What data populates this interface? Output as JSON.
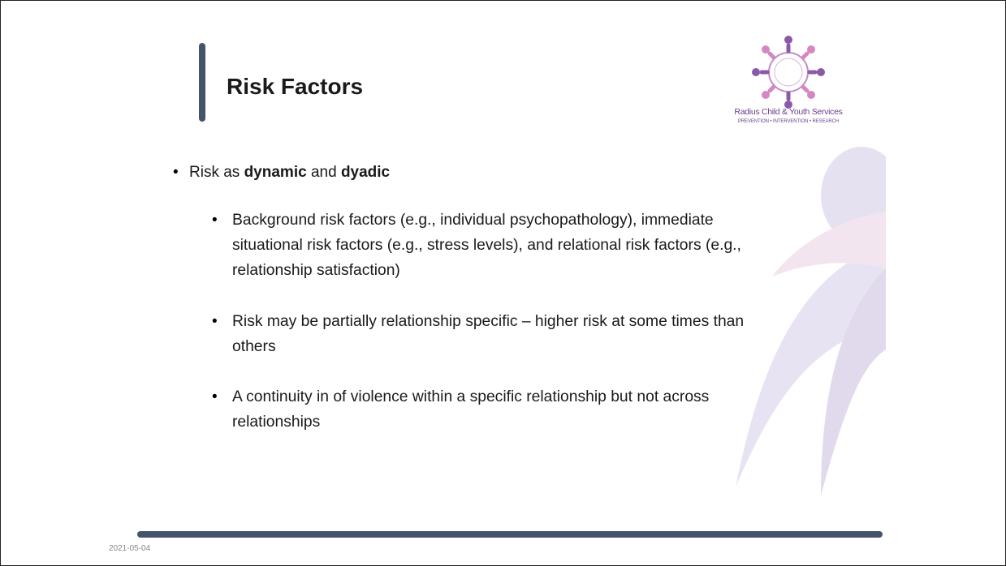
{
  "slide": {
    "title": "Risk Factors",
    "logo": {
      "name": "Radius Child & Youth Services",
      "tagline": "PREVENTION • INTERVENTION • RESEARCH"
    },
    "bullets": [
      {
        "runs": [
          {
            "text": "Risk as ",
            "bold": false
          },
          {
            "text": "dynamic",
            "bold": true
          },
          {
            "text": " and ",
            "bold": false
          },
          {
            "text": "dyadic",
            "bold": true
          }
        ],
        "sub": [
          "Background risk factors (e.g., individual psychopathology), immediate situational risk factors (e.g., stress levels), and relational risk factors (e.g., relationship satisfaction)",
          "Risk may be partially relationship specific – higher risk at some times than others",
          "A continuity in of violence within a specific relationship but not across relationships"
        ]
      }
    ],
    "date": "2021-05-04"
  }
}
